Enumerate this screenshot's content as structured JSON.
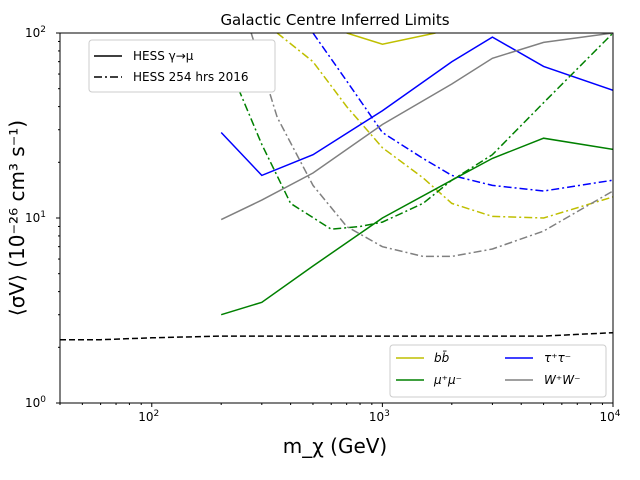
{
  "chart_data": {
    "type": "line",
    "title": "Galactic Centre Inferred Limits",
    "xlabel": "m_χ (GeV)",
    "ylabel": "⟨σV⟩ (10⁻²⁶ cm³ s⁻¹)",
    "xscale": "log",
    "yscale": "log",
    "xlim": [
      40,
      10000
    ],
    "ylim": [
      1,
      100
    ],
    "x_ticks": [
      {
        "value": 100,
        "base": "10",
        "exp": "2"
      },
      {
        "value": 1000,
        "base": "10",
        "exp": "3"
      },
      {
        "value": 10000,
        "base": "10",
        "exp": "4"
      }
    ],
    "y_ticks": [
      {
        "value": 1,
        "base": "10",
        "exp": "0"
      },
      {
        "value": 10,
        "base": "10",
        "exp": "1"
      },
      {
        "value": 100,
        "base": "10",
        "exp": "2"
      }
    ],
    "style_legend": [
      {
        "label": "HESS γ→μ",
        "dash": "solid"
      },
      {
        "label": "HESS 254 hrs 2016",
        "dash": "dashdot"
      }
    ],
    "channel_legend": [
      {
        "label": "bb̄",
        "color": "#bfbf00"
      },
      {
        "label": "τ⁺τ⁻",
        "color": "#0000ff"
      },
      {
        "label": "μ⁺μ⁻",
        "color": "#008000"
      },
      {
        "label": "W⁺W⁻",
        "color": "#808080"
      }
    ],
    "series": [
      {
        "name": "bb̄ (HESS γ→μ)",
        "color": "#bfbf00",
        "dash": "solid",
        "x": [
          700,
          1000,
          1700
        ],
        "y": [
          100,
          87,
          100
        ]
      },
      {
        "name": "bb̄ (HESS 254 hrs 2016)",
        "color": "#bfbf00",
        "dash": "dashdot",
        "x": [
          350,
          500,
          700,
          1000,
          1500,
          2000,
          3000,
          5000,
          10000
        ],
        "y": [
          100,
          70,
          40,
          24,
          16.5,
          12,
          10.2,
          10,
          13
        ]
      },
      {
        "name": "τ⁺τ⁻ (HESS γ→μ)",
        "color": "#0000ff",
        "dash": "solid",
        "x": [
          200,
          300,
          500,
          1000,
          2000,
          3000,
          5000,
          10000
        ],
        "y": [
          29,
          17,
          22,
          38,
          70,
          95,
          66,
          49
        ]
      },
      {
        "name": "τ⁺τ⁻ (HESS 254 hrs 2016)",
        "color": "#0000ff",
        "dash": "dashdot",
        "x": [
          500,
          700,
          1000,
          1500,
          2000,
          3000,
          5000,
          10000
        ],
        "y": [
          100,
          55,
          29,
          21,
          17,
          15,
          14,
          16
        ]
      },
      {
        "name": "μ⁺μ⁻ (HESS γ→μ)",
        "color": "#008000",
        "dash": "solid",
        "x": [
          200,
          300,
          500,
          1000,
          2000,
          3000,
          5000,
          10000
        ],
        "y": [
          3,
          3.5,
          5.5,
          10,
          16,
          21,
          27,
          23.5
        ]
      },
      {
        "name": "μ⁺μ⁻ (HESS 254 hrs 2016)",
        "color": "#008000",
        "dash": "dashdot",
        "x": [
          210,
          300,
          400,
          600,
          800,
          1000,
          1500,
          2000,
          3000,
          5000,
          10000
        ],
        "y": [
          72,
          25,
          12,
          8.7,
          9.0,
          9.5,
          12,
          16,
          22,
          42,
          100
        ]
      },
      {
        "name": "W⁺W⁻ (HESS γ→μ)",
        "color": "#808080",
        "dash": "solid",
        "x": [
          200,
          300,
          500,
          1000,
          2000,
          3000,
          5000,
          10000
        ],
        "y": [
          9.8,
          12.5,
          17.5,
          32,
          53,
          73,
          89,
          100
        ]
      },
      {
        "name": "W⁺W⁻ (HESS 254 hrs 2016)",
        "color": "#808080",
        "dash": "dashdot",
        "x": [
          270,
          350,
          500,
          700,
          1000,
          1500,
          2000,
          3000,
          5000,
          10000
        ],
        "y": [
          100,
          35,
          15,
          9,
          7,
          6.2,
          6.2,
          6.8,
          8.5,
          14
        ]
      },
      {
        "name": "reference",
        "color": "#000000",
        "dash": "dashed",
        "x": [
          40,
          60,
          100,
          200,
          500,
          1000,
          2000,
          5000,
          7000,
          10000
        ],
        "y": [
          2.2,
          2.2,
          2.25,
          2.3,
          2.3,
          2.3,
          2.3,
          2.3,
          2.35,
          2.4
        ]
      }
    ]
  }
}
